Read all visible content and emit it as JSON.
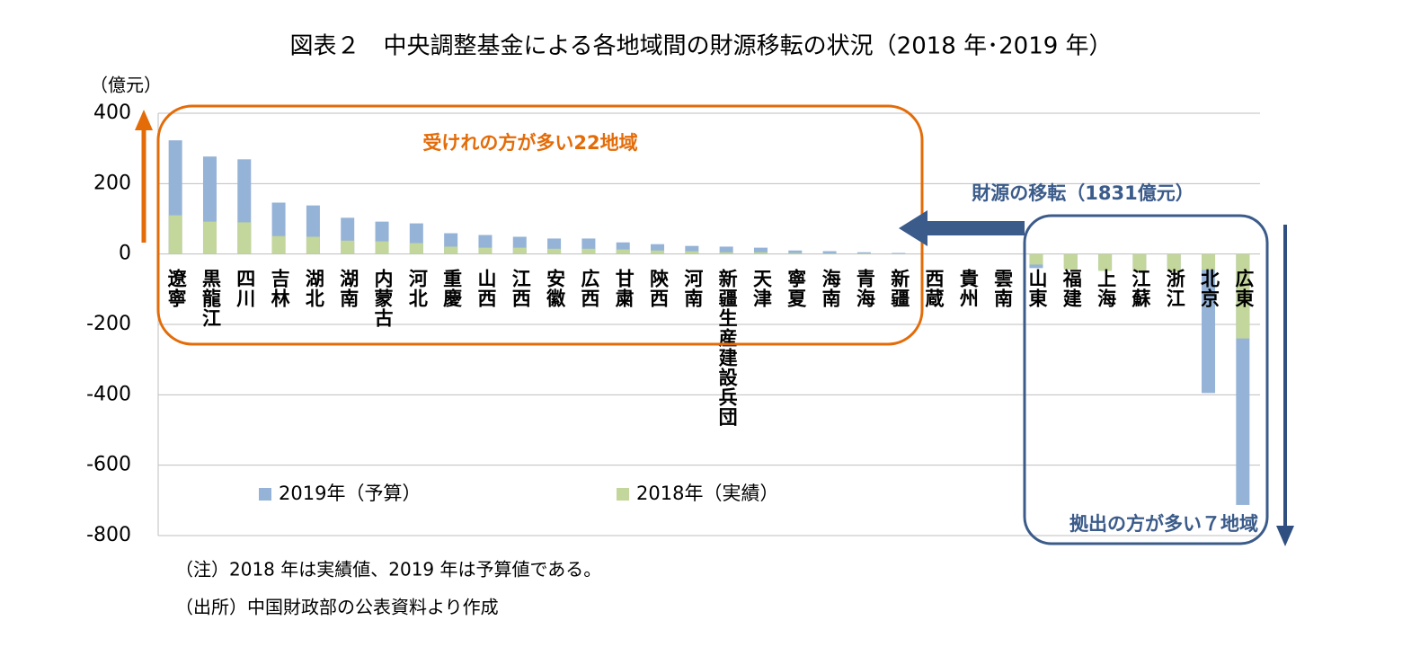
{
  "chart_data": {
    "type": "bar",
    "title": "図表２　中央調整基金による各地域間の財源移転の状況（2018 年･2019 年）",
    "y_label": "（億元）",
    "categories": [
      "遼寧",
      "黒龍江",
      "四川",
      "吉林",
      "湖北",
      "湖南",
      "内蒙古",
      "河北",
      "重慶",
      "山西",
      "江西",
      "安徽",
      "広西",
      "甘粛",
      "陝西",
      "河南",
      "新疆生産建設兵団",
      "天津",
      "寧夏",
      "海南",
      "青海",
      "新疆",
      "西蔵",
      "貴州",
      "雲南",
      "山東",
      "福建",
      "上海",
      "江蘇",
      "浙江",
      "北京",
      "広東"
    ],
    "series": [
      {
        "name": "2019年（予算）",
        "color": "#95b3d7",
        "values": [
          323,
          277,
          269,
          146,
          138,
          103,
          92,
          87,
          59,
          54,
          49,
          44,
          44,
          33,
          28,
          23,
          21,
          18,
          10,
          8,
          5,
          3,
          0,
          0,
          0,
          -40,
          -40,
          -45,
          -45,
          -45,
          -395,
          -713
        ]
      },
      {
        "name": "2018年（実績）",
        "color": "#c3d69b",
        "values": [
          110,
          92,
          90,
          51,
          49,
          38,
          36,
          31,
          21,
          18,
          18,
          15,
          15,
          13,
          10,
          8,
          5,
          5,
          3,
          2,
          2,
          1,
          0,
          0,
          0,
          -30,
          -44,
          -48,
          -50,
          -50,
          -45,
          -240
        ]
      }
    ],
    "ylim": [
      -800,
      400
    ],
    "yticks": [
      -800,
      -600,
      -400,
      -200,
      0,
      200,
      400
    ],
    "grid": true,
    "legend": "lower left",
    "annotations": [
      "受けれの方が多い22地域",
      "財源の移転（1831億元）",
      "拠出の方が多い７地域"
    ],
    "notes": [
      "（注）2018 年は実績値、2019 年は予算値である。",
      "（出所）中国財政部の公表資料より作成"
    ]
  }
}
